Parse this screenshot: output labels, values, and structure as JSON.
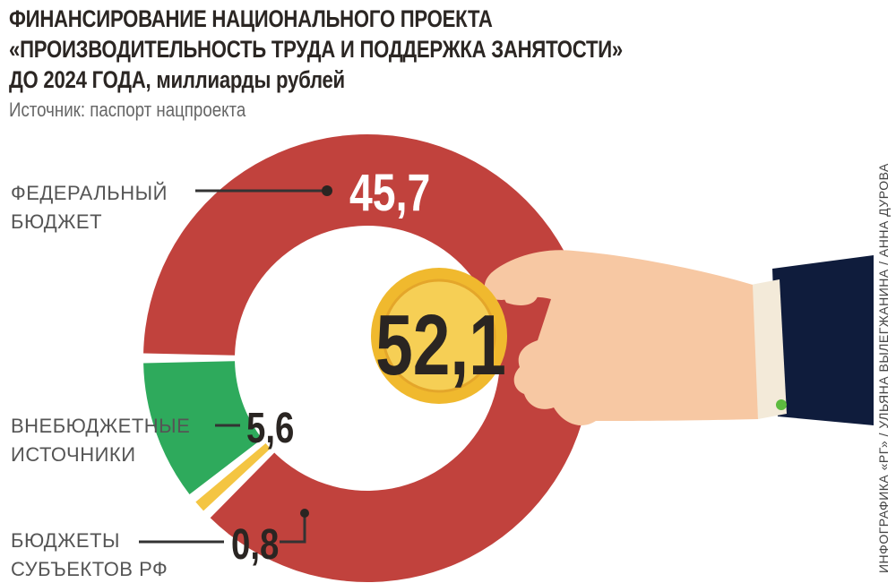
{
  "title_line1": "ФИНАНСИРОВАНИЕ НАЦИОНАЛЬНОГО ПРОЕКТА",
  "title_line2": "«ПРОИЗВОДИТЕЛЬНОСТЬ ТРУДА И ПОДДЕРЖКА ЗАНЯТОСТИ»",
  "title_line3_bold": "ДО 2024 ГОДА,",
  "title_line3_unit": " миллиарды рублей",
  "source": "Источник: паспорт нацпроекта",
  "credit": "ИНФОГРАФИКА «РГ» / УЛЬЯНА ВЫЛЕГЖАНИНА / АННА ДУРОВА",
  "chart_data": {
    "type": "pie",
    "donut": true,
    "total": "52,1",
    "slices": [
      {
        "name_lines": [
          "ФЕДЕРАЛЬНЫЙ",
          "БЮДЖЕТ"
        ],
        "value": 45.7,
        "label": "45,7",
        "color": "#c1423d"
      },
      {
        "name_lines": [
          "ВНЕБЮДЖЕТНЫЕ",
          "ИСТОЧНИКИ"
        ],
        "value": 5.6,
        "label": "5,6",
        "color": "#2eaa5c"
      },
      {
        "name_lines": [
          "БЮДЖЕТЫ",
          "СУБЪЕКТОВ РФ"
        ],
        "value": 0.8,
        "label": "0,8",
        "color": "#f4c542"
      }
    ]
  }
}
